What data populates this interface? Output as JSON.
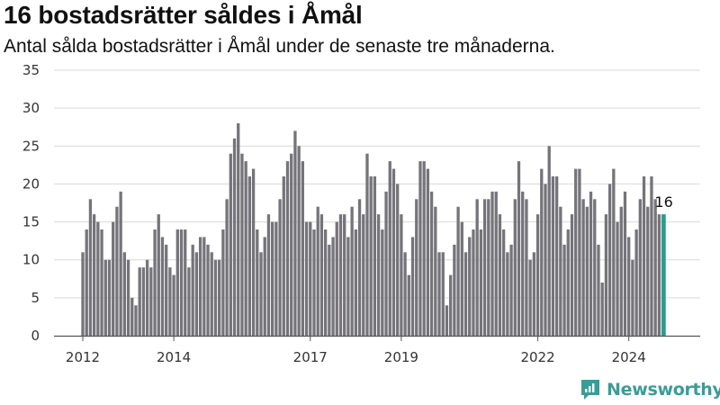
{
  "header": {
    "title": "16 bostadsrätter såldes i Åmål",
    "subtitle": "Antal sålda bostadsrätter i Åmål under de senaste tre månaderna."
  },
  "brand": {
    "name": "Newsworthy",
    "color": "#3a9c97"
  },
  "chart_data": {
    "type": "bar",
    "x_start": "2012-01",
    "x_step": "month",
    "values": [
      11,
      14,
      18,
      16,
      15,
      14,
      10,
      10,
      15,
      17,
      19,
      11,
      10,
      5,
      4,
      9,
      9,
      10,
      9,
      14,
      16,
      13,
      12,
      9,
      8,
      14,
      14,
      14,
      9,
      12,
      11,
      13,
      13,
      12,
      11,
      10,
      10,
      14,
      18,
      24,
      26,
      28,
      24,
      23,
      21,
      22,
      14,
      11,
      13,
      16,
      15,
      15,
      18,
      21,
      23,
      24,
      27,
      25,
      23,
      15,
      15,
      14,
      17,
      16,
      14,
      12,
      13,
      15,
      16,
      16,
      13,
      17,
      14,
      18,
      16,
      24,
      21,
      21,
      16,
      14,
      19,
      23,
      22,
      20,
      16,
      11,
      8,
      13,
      18,
      23,
      23,
      22,
      19,
      17,
      11,
      11,
      4,
      8,
      12,
      17,
      15,
      11,
      13,
      14,
      18,
      14,
      18,
      18,
      19,
      19,
      16,
      14,
      11,
      12,
      18,
      23,
      19,
      18,
      10,
      11,
      16,
      22,
      20,
      25,
      21,
      21,
      17,
      12,
      14,
      16,
      22,
      22,
      18,
      17,
      19,
      18,
      12,
      7,
      16,
      20,
      22,
      15,
      17,
      19,
      13,
      10,
      14,
      18,
      21,
      17,
      21,
      18,
      16,
      16
    ],
    "highlight_last": true,
    "highlight_label": "16",
    "colors": {
      "bar": "#75747a",
      "highlight": "#2a9d91",
      "grid": "#d9d9d9",
      "axis": "#555555"
    },
    "ylim": [
      0,
      35
    ],
    "yticks": [
      0,
      5,
      10,
      15,
      20,
      25,
      30,
      35
    ],
    "xticks": [
      {
        "label": "2012",
        "index": 0
      },
      {
        "label": "2014",
        "index": 24
      },
      {
        "label": "2017",
        "index": 60
      },
      {
        "label": "2019",
        "index": 84
      },
      {
        "label": "2022",
        "index": 120
      },
      {
        "label": "2024",
        "index": 144
      }
    ],
    "xlabel": "",
    "ylabel": "",
    "grid": true,
    "legend": "none"
  }
}
